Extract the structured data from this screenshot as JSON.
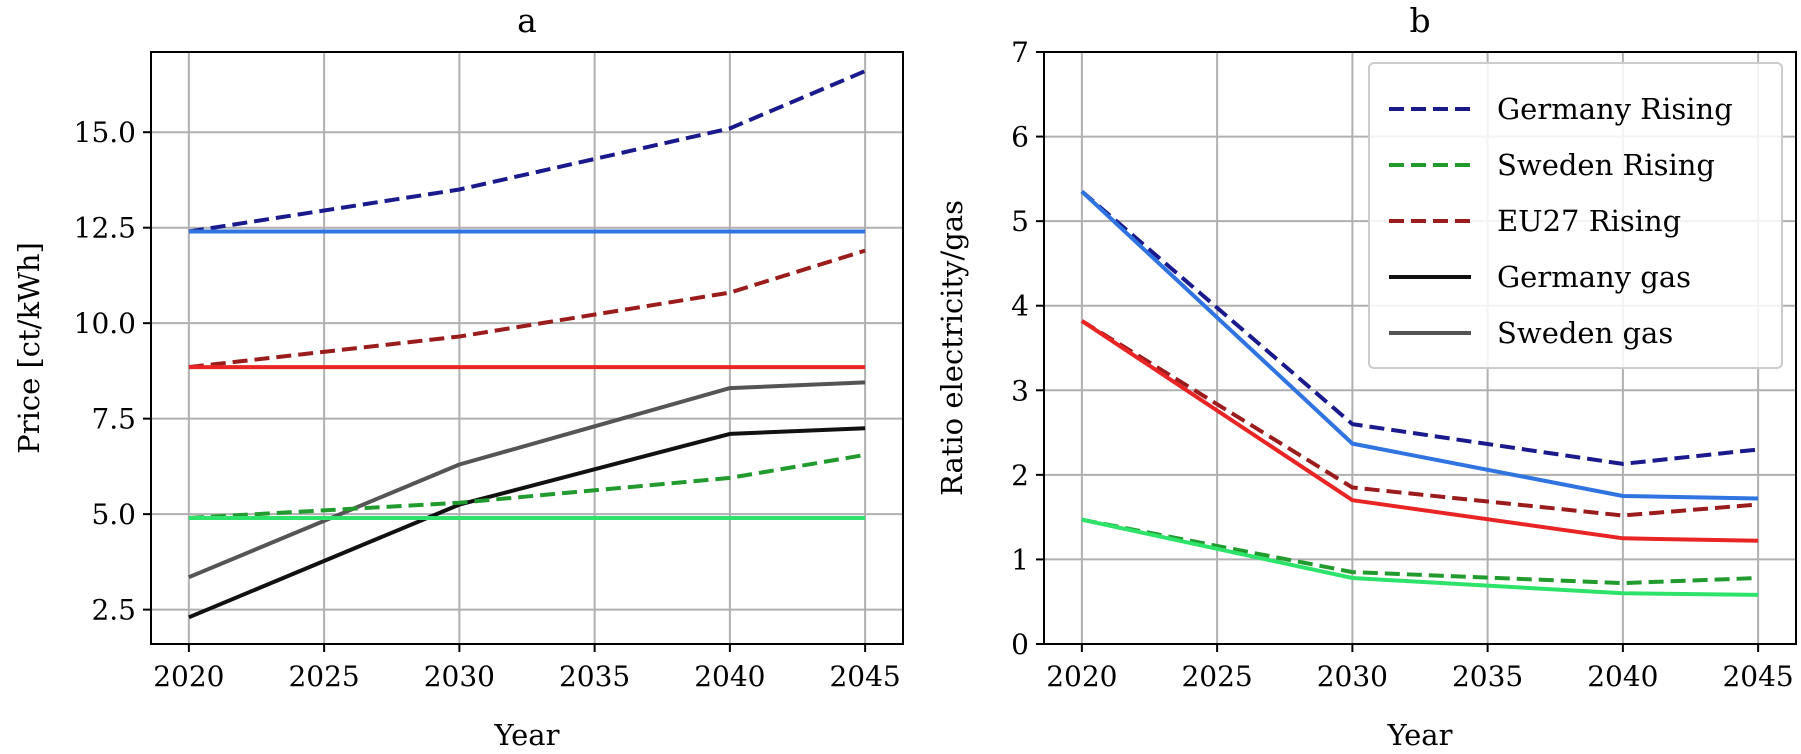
{
  "chart_data": [
    {
      "type": "line",
      "title": "a",
      "xlabel": "Year",
      "ylabel": "Price [ct/kWh]",
      "xlim": [
        2018.6,
        2046.4
      ],
      "ylim": [
        1.6,
        17.1
      ],
      "x_ticks": [
        "2020",
        "2025",
        "2030",
        "2035",
        "2040",
        "2045"
      ],
      "y_ticks": [
        "2.5",
        "5.0",
        "7.5",
        "10.0",
        "12.5",
        "15.0"
      ],
      "grid": true,
      "x": [
        2020,
        2030,
        2040,
        2045
      ],
      "series": [
        {
          "color": "#1a1a8c",
          "dash": true,
          "values": [
            12.4,
            13.5,
            15.1,
            16.6
          ]
        },
        {
          "color": "#2f74e0",
          "dash": false,
          "values": [
            12.4,
            12.4,
            12.4,
            12.4
          ]
        },
        {
          "color": "#9b1c1c",
          "dash": true,
          "values": [
            8.85,
            9.65,
            10.8,
            11.9
          ]
        },
        {
          "color": "#e82424",
          "dash": false,
          "values": [
            8.85,
            8.85,
            8.85,
            8.85
          ]
        },
        {
          "color": "#555555",
          "dash": false,
          "values": [
            3.35,
            6.3,
            8.3,
            8.45
          ]
        },
        {
          "color": "#111111",
          "dash": false,
          "values": [
            2.3,
            5.25,
            7.1,
            7.25
          ]
        },
        {
          "color": "#219a2e",
          "dash": true,
          "values": [
            4.9,
            5.3,
            5.95,
            6.55
          ]
        },
        {
          "color": "#2de36a",
          "dash": false,
          "values": [
            4.9,
            4.9,
            4.9,
            4.9
          ]
        }
      ]
    },
    {
      "type": "line",
      "title": "b",
      "xlabel": "Year",
      "ylabel": "Ratio electricity/gas",
      "xlim": [
        2018.6,
        2046.4
      ],
      "ylim": [
        0,
        7
      ],
      "x_ticks": [
        "2020",
        "2025",
        "2030",
        "2035",
        "2040",
        "2045"
      ],
      "y_ticks": [
        "0",
        "1",
        "2",
        "3",
        "4",
        "5",
        "6",
        "7"
      ],
      "grid": true,
      "legend_position": "top-right",
      "x": [
        2020,
        2030,
        2040,
        2045
      ],
      "series": [
        {
          "color": "#1a1a8c",
          "dash": true,
          "values": [
            5.35,
            2.6,
            2.13,
            2.3
          ]
        },
        {
          "color": "#2f74e0",
          "dash": false,
          "values": [
            5.35,
            2.37,
            1.75,
            1.72
          ]
        },
        {
          "color": "#9b1c1c",
          "dash": true,
          "values": [
            3.82,
            1.85,
            1.52,
            1.65
          ]
        },
        {
          "color": "#e82424",
          "dash": false,
          "values": [
            3.82,
            1.7,
            1.25,
            1.22
          ]
        },
        {
          "color": "#219a2e",
          "dash": true,
          "values": [
            1.47,
            0.85,
            0.72,
            0.78
          ]
        },
        {
          "color": "#2de36a",
          "dash": false,
          "values": [
            1.47,
            0.78,
            0.6,
            0.58
          ]
        }
      ],
      "legend": [
        {
          "label": "Germany Rising",
          "color": "#1a1a8c",
          "dash": true
        },
        {
          "label": "Sweden Rising",
          "color": "#219a2e",
          "dash": true
        },
        {
          "label": "EU27 Rising",
          "color": "#9b1c1c",
          "dash": true
        },
        {
          "label": "Germany gas",
          "color": "#111111",
          "dash": false
        },
        {
          "label": "Sweden gas",
          "color": "#555555",
          "dash": false
        }
      ]
    }
  ]
}
